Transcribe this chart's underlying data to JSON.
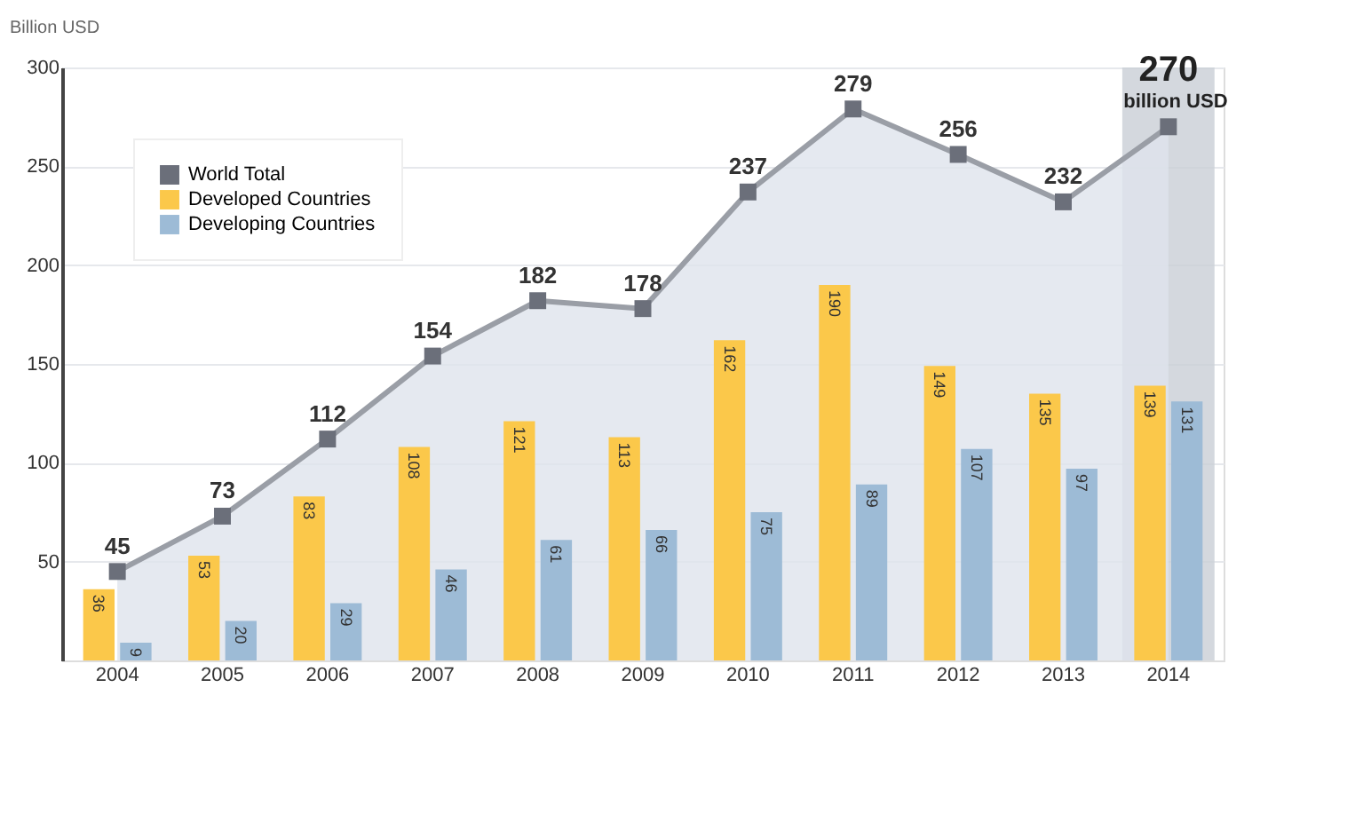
{
  "chart_data": {
    "type": "bar",
    "ylabel": "Billion USD",
    "categories": [
      "2004",
      "2005",
      "2006",
      "2007",
      "2008",
      "2009",
      "2010",
      "2011",
      "2012",
      "2013",
      "2014"
    ],
    "series": [
      {
        "name": "World Total",
        "type": "area",
        "color": "#6b6f7a",
        "values": [
          45,
          73,
          112,
          154,
          182,
          178,
          237,
          279,
          256,
          232,
          270
        ]
      },
      {
        "name": "Developed Countries",
        "color": "#fbc84a",
        "values": [
          36,
          53,
          83,
          108,
          121,
          113,
          162,
          190,
          149,
          135,
          139
        ]
      },
      {
        "name": "Developing Countries",
        "color": "#9dbbd6",
        "values": [
          9,
          20,
          29,
          46,
          61,
          66,
          75,
          89,
          107,
          97,
          131
        ]
      }
    ],
    "ylim": [
      0,
      300
    ],
    "yticks": [
      50,
      100,
      150,
      200,
      250,
      300
    ],
    "bands": [
      {
        "axis": "x",
        "from": "2014",
        "to": "2014",
        "color": "#c9ced6"
      }
    ],
    "annotations": [
      {
        "text": "billion USD",
        "x": "2014",
        "y": 270
      }
    ],
    "data_labels": true,
    "grid": "y",
    "legend": "top left",
    "marker": "square"
  }
}
